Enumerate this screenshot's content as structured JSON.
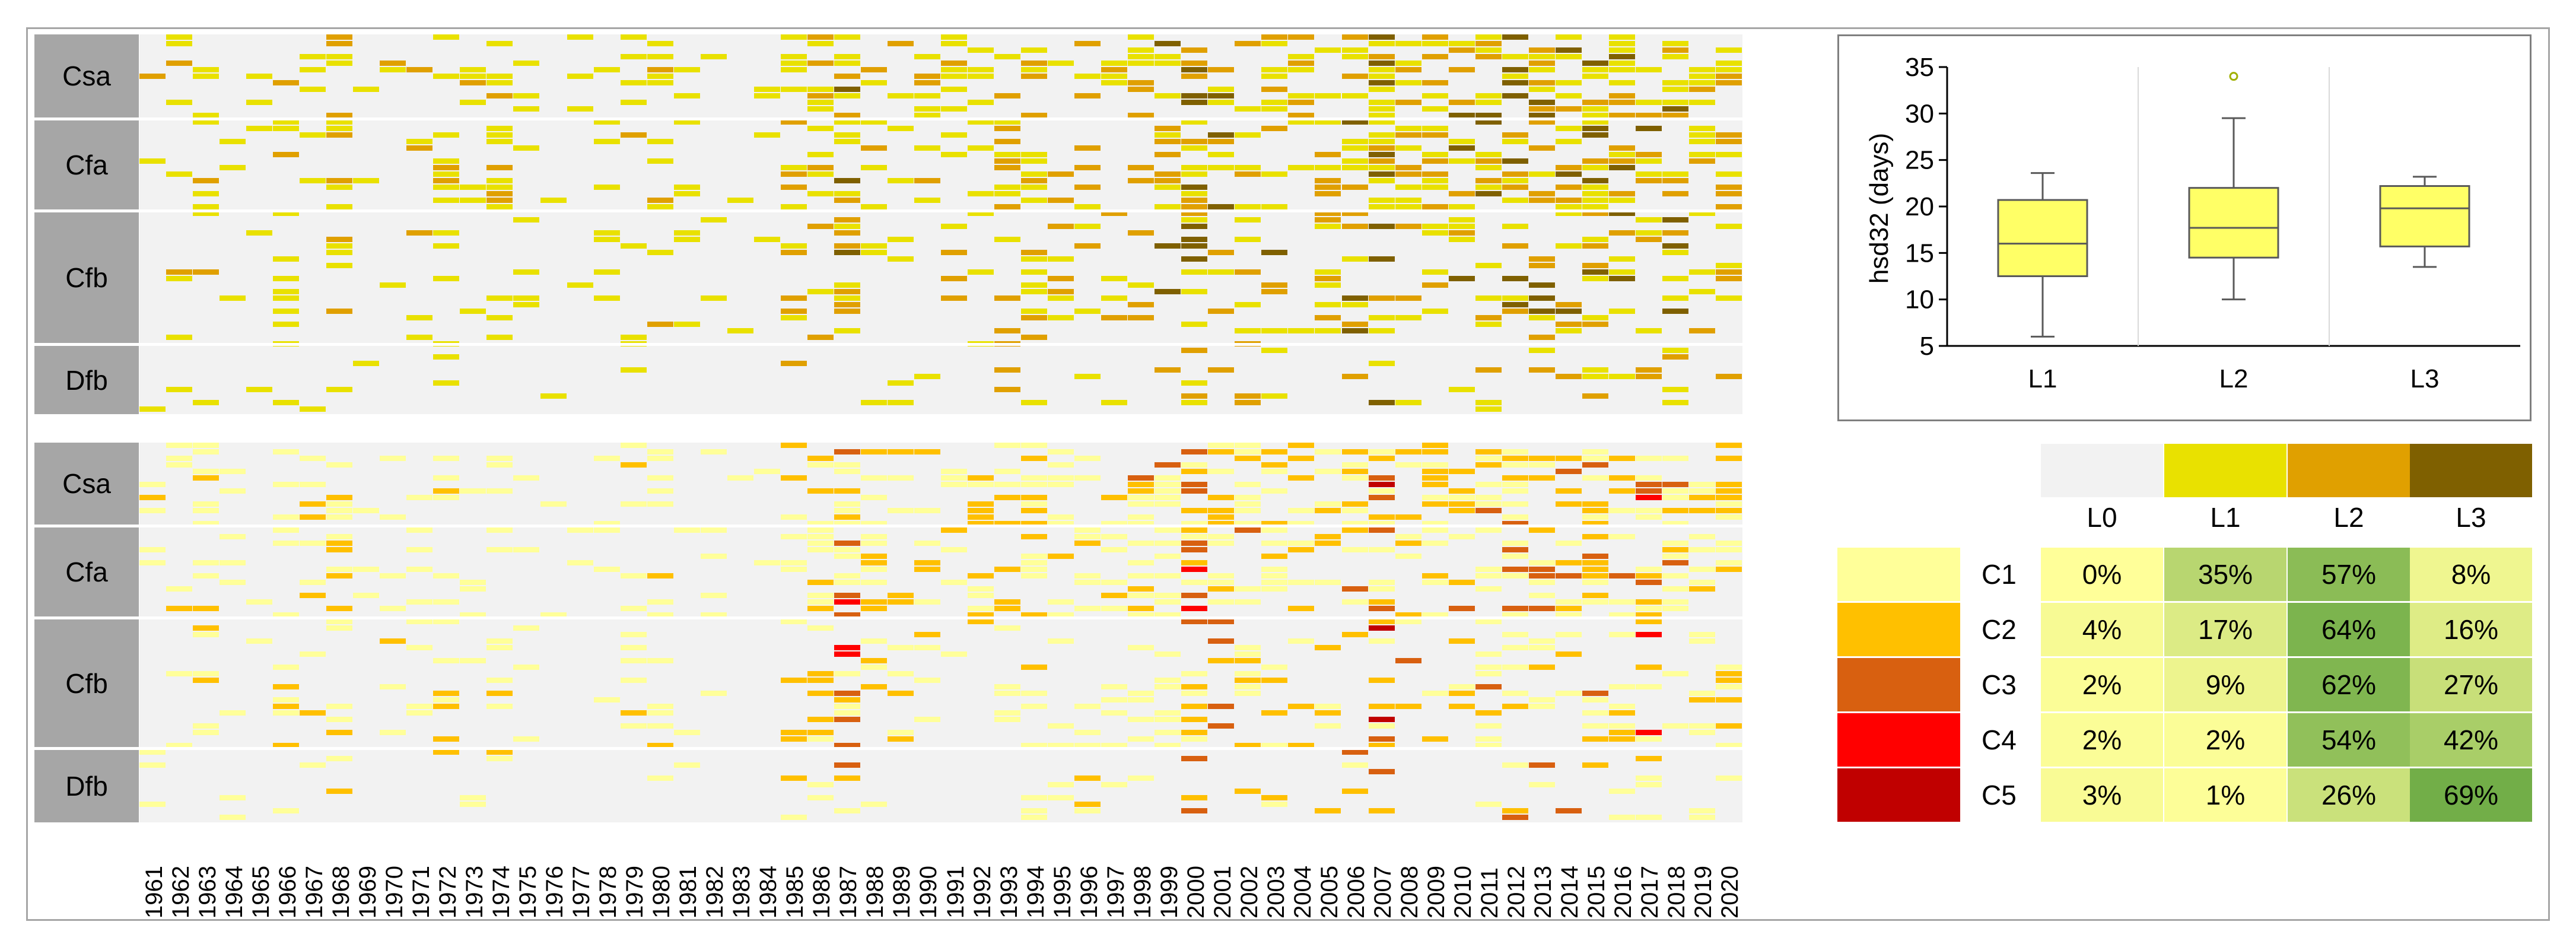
{
  "chart_data": [
    {
      "type": "heatmap",
      "title": "",
      "row_groups": [
        "Csa",
        "Cfa",
        "Cfb",
        "Dfb"
      ],
      "x_labels": [
        "1961",
        "1962",
        "1963",
        "1964",
        "1965",
        "1966",
        "1967",
        "1968",
        "1969",
        "1970",
        "1971",
        "1972",
        "1973",
        "1974",
        "1975",
        "1976",
        "1977",
        "1978",
        "1979",
        "1980",
        "1981",
        "1982",
        "1983",
        "1984",
        "1985",
        "1986",
        "1987",
        "1988",
        "1989",
        "1990",
        "1991",
        "1992",
        "1993",
        "1994",
        "1995",
        "1996",
        "1997",
        "1998",
        "1999",
        "2000",
        "2001",
        "2002",
        "2003",
        "2004",
        "2005",
        "2006",
        "2007",
        "2008",
        "2009",
        "2010",
        "2011",
        "2012",
        "2013",
        "2014",
        "2015",
        "2016",
        "2017",
        "2018",
        "2019",
        "2020"
      ],
      "legend": [
        "L0",
        "L1",
        "L2",
        "L3"
      ],
      "legend_colors": [
        "#f2f2f2",
        "#e9e100",
        "#e0a000",
        "#7f6000"
      ],
      "year_intensity": [
        0.25,
        0.3,
        0.4,
        0.15,
        0.15,
        0.3,
        0.3,
        0.45,
        0.15,
        0.2,
        0.3,
        0.3,
        0.3,
        0.45,
        0.2,
        0.05,
        0.15,
        0.2,
        0.2,
        0.25,
        0.2,
        0.15,
        0.2,
        0.2,
        0.5,
        0.5,
        0.85,
        0.5,
        0.35,
        0.3,
        0.3,
        0.45,
        0.4,
        0.5,
        0.3,
        0.4,
        0.35,
        0.55,
        0.7,
        0.85,
        0.6,
        0.55,
        0.6,
        0.5,
        0.5,
        0.65,
        0.95,
        0.55,
        0.5,
        0.65,
        0.6,
        0.75,
        0.7,
        0.6,
        0.75,
        0.6,
        0.8,
        0.6,
        0.45,
        0.45
      ]
    },
    {
      "type": "heatmap",
      "title": "",
      "row_groups": [
        "Csa",
        "Cfa",
        "Cfb",
        "Dfb"
      ],
      "x_labels": [
        "1961",
        "1962",
        "1963",
        "1964",
        "1965",
        "1966",
        "1967",
        "1968",
        "1969",
        "1970",
        "1971",
        "1972",
        "1973",
        "1974",
        "1975",
        "1976",
        "1977",
        "1978",
        "1979",
        "1980",
        "1981",
        "1982",
        "1983",
        "1984",
        "1985",
        "1986",
        "1987",
        "1988",
        "1989",
        "1990",
        "1991",
        "1992",
        "1993",
        "1994",
        "1995",
        "1996",
        "1997",
        "1998",
        "1999",
        "2000",
        "2001",
        "2002",
        "2003",
        "2004",
        "2005",
        "2006",
        "2007",
        "2008",
        "2009",
        "2010",
        "2011",
        "2012",
        "2013",
        "2014",
        "2015",
        "2016",
        "2017",
        "2018",
        "2019",
        "2020"
      ],
      "legend": [
        "C1",
        "C2",
        "C3",
        "C4",
        "C5"
      ],
      "legend_colors": [
        "#ffff99",
        "#ffc000",
        "#d86010",
        "#ff0000",
        "#c00000"
      ]
    },
    {
      "type": "box",
      "title": "",
      "ylabel": "hsd32 (days)",
      "xlabel": "",
      "categories": [
        "L1",
        "L2",
        "L3"
      ],
      "ylim": [
        5,
        35
      ],
      "yticks": [
        5,
        10,
        15,
        20,
        25,
        30,
        35
      ],
      "boxes": [
        {
          "name": "L1",
          "min": 6,
          "q1": 12.5,
          "median": 16,
          "q3": 20.7,
          "max": 23.6,
          "outliers": []
        },
        {
          "name": "L2",
          "min": 10,
          "q1": 14.5,
          "median": 17.7,
          "q3": 22,
          "max": 29.5,
          "outliers": [
            34
          ]
        },
        {
          "name": "L3",
          "min": 13.5,
          "q1": 15.7,
          "median": 19.8,
          "q3": 22.2,
          "max": 23.2,
          "outliers": []
        }
      ]
    },
    {
      "type": "table",
      "columns": [
        "L0",
        "L1",
        "L2",
        "L3"
      ],
      "rows": [
        {
          "label": "C1",
          "values": [
            "0%",
            "35%",
            "57%",
            "8%"
          ]
        },
        {
          "label": "C2",
          "values": [
            "4%",
            "17%",
            "64%",
            "16%"
          ]
        },
        {
          "label": "C3",
          "values": [
            "2%",
            "9%",
            "62%",
            "27%"
          ]
        },
        {
          "label": "C4",
          "values": [
            "2%",
            "2%",
            "54%",
            "42%"
          ]
        },
        {
          "label": "C5",
          "values": [
            "3%",
            "1%",
            "26%",
            "69%"
          ]
        }
      ]
    }
  ]
}
